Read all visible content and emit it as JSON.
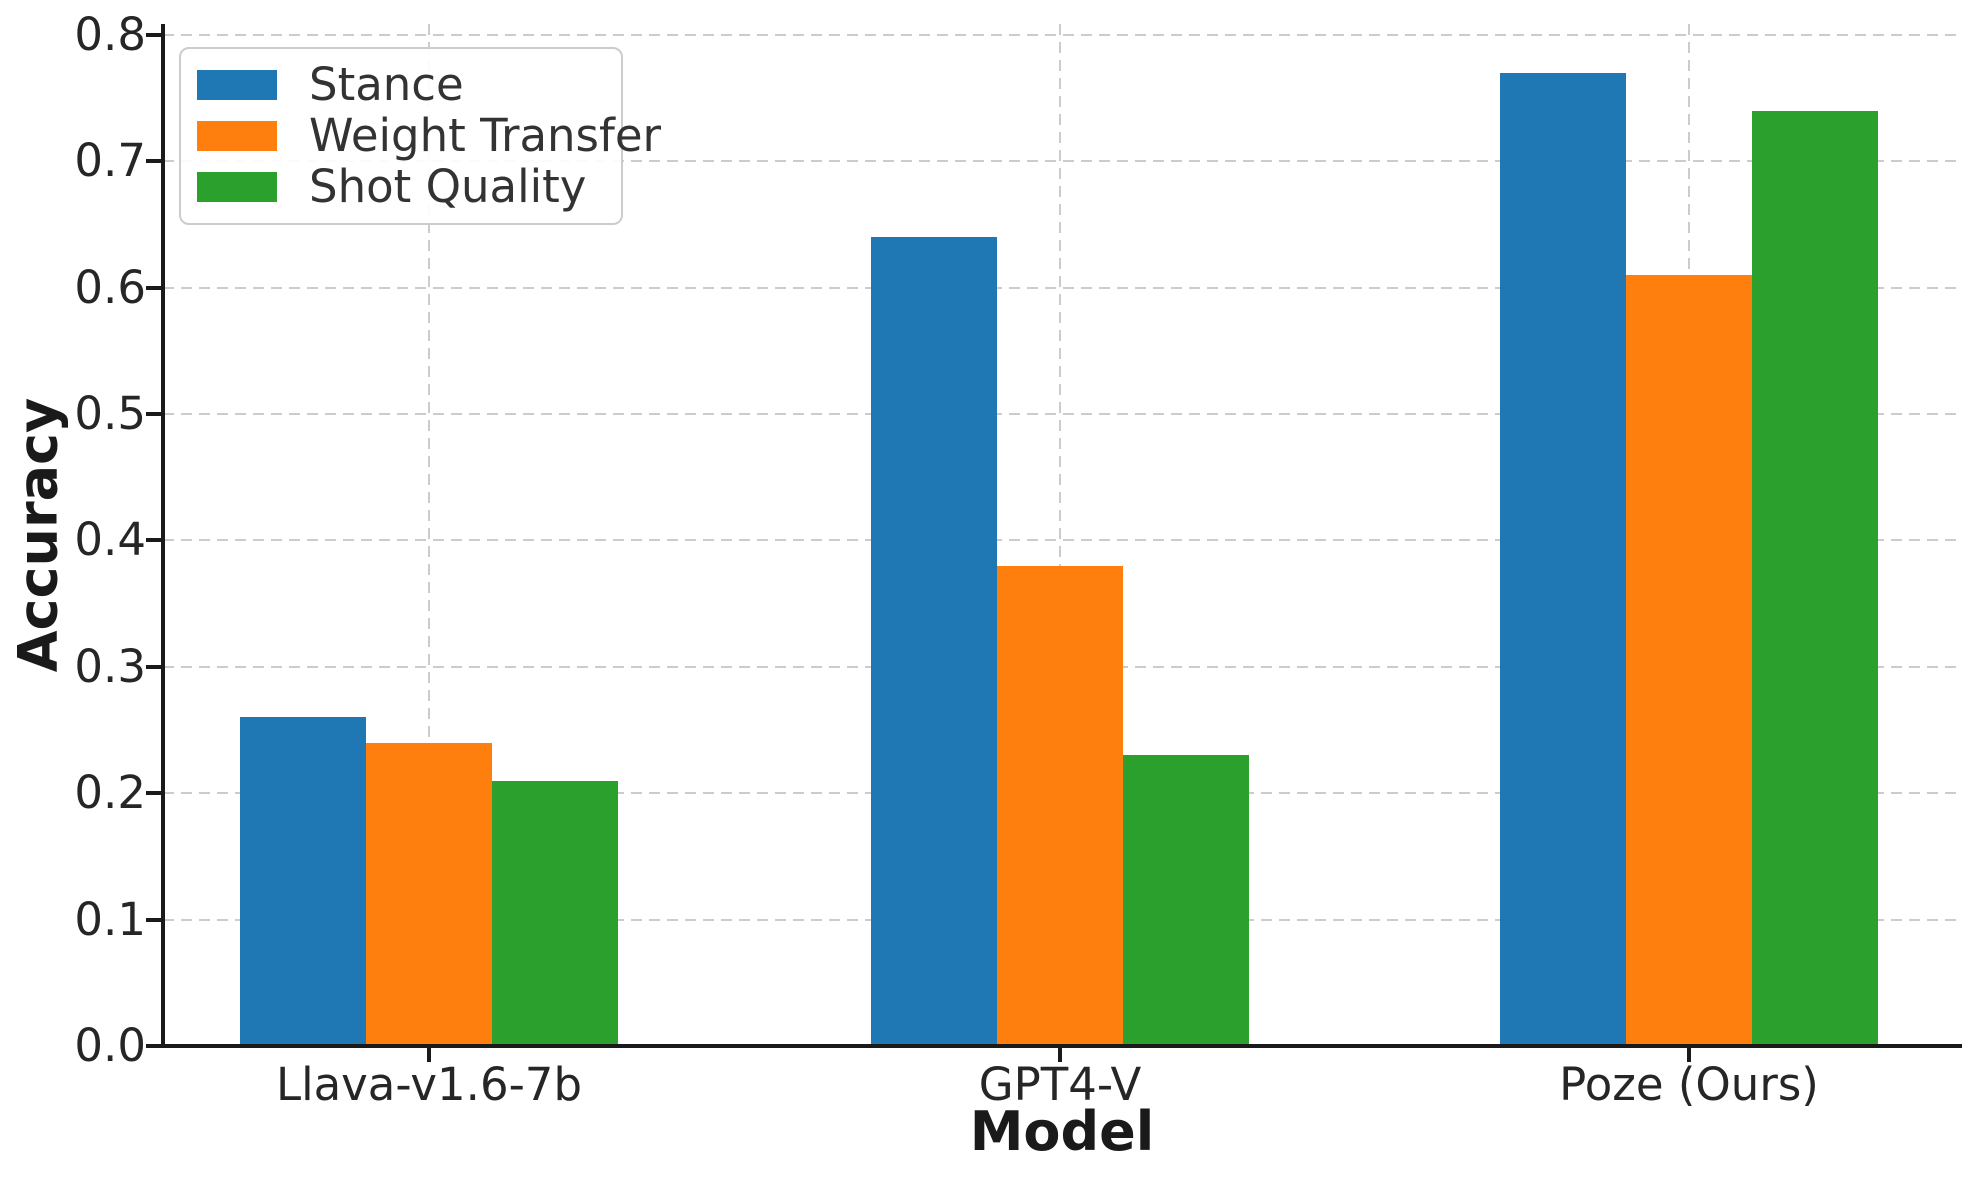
{
  "chart_data": {
    "type": "bar",
    "title": "",
    "xlabel": "Model",
    "ylabel": "Accuracy",
    "categories": [
      "Llava-v1.6-7b",
      "GPT4-V",
      "Poze (Ours)"
    ],
    "series": [
      {
        "name": "Stance",
        "color": "#1f77b4",
        "values": [
          0.26,
          0.64,
          0.77
        ]
      },
      {
        "name": "Weight Transfer",
        "color": "#ff7f0e",
        "values": [
          0.24,
          0.38,
          0.61
        ]
      },
      {
        "name": "Shot Quality",
        "color": "#2ca02c",
        "values": [
          0.21,
          0.23,
          0.74
        ]
      }
    ],
    "ylim": [
      0,
      0.81
    ],
    "yticks": [
      "0.0",
      "0.1",
      "0.2",
      "0.3",
      "0.4",
      "0.5",
      "0.6",
      "0.7",
      "0.8"
    ],
    "bar_width": 0.2,
    "grid": {
      "style": "dashed",
      "axes": "both",
      "color": "#cccccc"
    },
    "legend_position": "upper left",
    "spine_color": "#1a1a1a",
    "tick_text_color": "#262626"
  }
}
